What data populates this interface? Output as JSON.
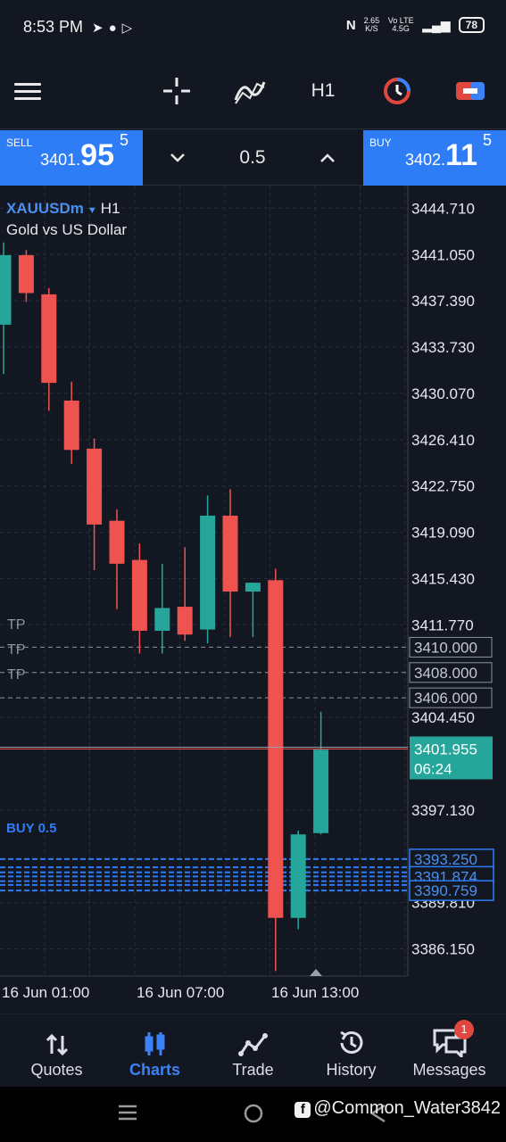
{
  "status_bar": {
    "time": "8:53 PM",
    "notification_icons": [
      "telegram-icon",
      "exness-icon",
      "play-icon"
    ],
    "net_speed": "2.65",
    "net_unit": "K/S",
    "network": "Vo LTE 4.5G",
    "battery": "78"
  },
  "toolbar": {
    "timeframe": "H1",
    "icons": [
      "menu-icon",
      "crosshair-icon",
      "indicators-icon",
      "timeframe-label",
      "time-icon",
      "chart-type-icon"
    ]
  },
  "trade_bar": {
    "sell_label": "SELL",
    "sell_price_prefix": "3401.",
    "sell_price_big": "95",
    "sell_price_sup": "5",
    "lot": "0.5",
    "buy_label": "BUY",
    "buy_price_prefix": "3402.",
    "buy_price_big": "11",
    "buy_price_sup": "5"
  },
  "chart": {
    "symbol": "XAUUSDm",
    "timeframe": "H1",
    "description": "Gold vs US Dollar",
    "price_axis": [
      "3444.710",
      "3441.050",
      "3437.390",
      "3433.730",
      "3430.070",
      "3426.410",
      "3422.750",
      "3419.090",
      "3415.430",
      "3411.770",
      "3404.450",
      "3397.130",
      "3389.810",
      "3386.150"
    ],
    "tp_lines": [
      {
        "label": "TP",
        "price": "3410.000"
      },
      {
        "label": "TP",
        "price": "3408.000"
      },
      {
        "label": "TP",
        "price": "3406.000"
      }
    ],
    "current_price": "3401.955",
    "countdown": "06:24",
    "buy_tag": "BUY 0.5",
    "order_prices": [
      "3393.250",
      "3391.874",
      "3390.759"
    ],
    "time_axis": [
      "16 Jun 01:00",
      "16 Jun 07:00",
      "16 Jun 13:00"
    ],
    "colors": {
      "bull": "#26a69a",
      "bear": "#ef5350",
      "accent": "#2e7cf6",
      "background": "#131722"
    }
  },
  "chart_data": {
    "type": "candlestick",
    "symbol": "XAUUSDm",
    "timeframe": "H1",
    "y_range": [
      3384.0,
      3446.5
    ],
    "candles": [
      {
        "o": 3435.5,
        "h": 3442.0,
        "l": 3431.6,
        "c": 3441.0
      },
      {
        "o": 3441.0,
        "h": 3441.4,
        "l": 3437.3,
        "c": 3438.0
      },
      {
        "o": 3437.9,
        "h": 3438.4,
        "l": 3428.7,
        "c": 3430.9
      },
      {
        "o": 3429.5,
        "h": 3431.0,
        "l": 3424.5,
        "c": 3425.6
      },
      {
        "o": 3425.7,
        "h": 3426.5,
        "l": 3416.1,
        "c": 3419.7
      },
      {
        "o": 3420.0,
        "h": 3420.9,
        "l": 3413.0,
        "c": 3416.6
      },
      {
        "o": 3416.9,
        "h": 3418.2,
        "l": 3409.5,
        "c": 3411.3
      },
      {
        "o": 3411.3,
        "h": 3416.6,
        "l": 3409.5,
        "c": 3413.1
      },
      {
        "o": 3413.2,
        "h": 3417.9,
        "l": 3410.5,
        "c": 3411.0
      },
      {
        "o": 3411.4,
        "h": 3422.0,
        "l": 3410.3,
        "c": 3420.4
      },
      {
        "o": 3420.4,
        "h": 3422.5,
        "l": 3410.8,
        "c": 3414.4
      },
      {
        "o": 3414.4,
        "h": 3415.1,
        "l": 3410.8,
        "c": 3415.1
      },
      {
        "o": 3415.3,
        "h": 3416.2,
        "l": 3384.4,
        "c": 3388.6
      },
      {
        "o": 3388.6,
        "h": 3395.5,
        "l": 3387.7,
        "c": 3395.2
      },
      {
        "o": 3395.3,
        "h": 3404.9,
        "l": 3395.2,
        "c": 3401.9
      }
    ]
  },
  "bottom_nav": {
    "items": [
      {
        "label": "Quotes",
        "icon": "quotes-icon"
      },
      {
        "label": "Charts",
        "icon": "charts-icon"
      },
      {
        "label": "Trade",
        "icon": "trade-icon"
      },
      {
        "label": "History",
        "icon": "history-icon"
      },
      {
        "label": "Messages",
        "icon": "messages-icon",
        "badge": "1"
      }
    ],
    "active": "Charts"
  },
  "system_bar": {
    "watermark": "@Common_Water3842"
  }
}
